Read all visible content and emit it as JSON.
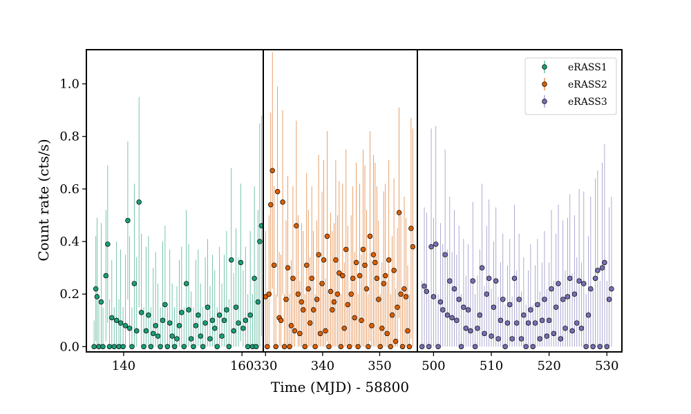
{
  "chart_data": {
    "type": "scatter",
    "subtype": "errorbar",
    "xlabel": "Time (MJD) - 58800",
    "ylabel": "Count rate (cts/s)",
    "ylim": [
      -0.02,
      1.13
    ],
    "yticks": [
      0.0,
      0.2,
      0.4,
      0.6,
      0.8,
      1.0
    ],
    "ytick_labels": [
      "0.0",
      "0.2",
      "0.4",
      "0.6",
      "0.8",
      "1.0"
    ],
    "grid": false,
    "legend_position": "top-right",
    "panels": [
      {
        "series": "eRASS1",
        "xlim": [
          133.7,
          163.6
        ],
        "xticks": [
          140,
          160
        ],
        "xtick_labels": [
          "140",
          "160"
        ]
      },
      {
        "series": "eRASS2",
        "xlim": [
          329.6,
          356.6
        ],
        "xticks": [
          330,
          340,
          350
        ],
        "xtick_labels": [
          "330",
          "340",
          "350"
        ]
      },
      {
        "series": "eRASS3",
        "xlim": [
          497.2,
          532.6
        ],
        "xticks": [
          500,
          510,
          520,
          530
        ],
        "xtick_labels": [
          "500",
          "510",
          "520",
          "530"
        ]
      }
    ],
    "series": [
      {
        "name": "eRASS1",
        "color": "#1b9e77",
        "x": [
          135.0,
          135.3,
          135.5,
          135.8,
          136.2,
          136.5,
          137.0,
          137.3,
          137.6,
          138.0,
          138.4,
          138.8,
          139.2,
          139.5,
          139.9,
          140.3,
          140.7,
          141.0,
          141.4,
          141.8,
          142.2,
          142.6,
          143.0,
          143.4,
          143.8,
          144.2,
          144.6,
          145.0,
          145.4,
          145.8,
          146.2,
          146.6,
          147.0,
          147.4,
          147.8,
          148.2,
          148.6,
          149.0,
          149.4,
          149.8,
          150.2,
          150.6,
          151.0,
          151.4,
          151.8,
          152.2,
          152.6,
          153.0,
          153.4,
          153.8,
          154.2,
          154.6,
          155.0,
          155.4,
          155.8,
          156.2,
          156.6,
          157.0,
          157.4,
          157.8,
          158.2,
          158.6,
          159.0,
          159.4,
          159.8,
          160.2,
          160.6,
          161.0,
          161.4,
          161.8,
          162.1,
          162.4,
          162.7,
          163.0,
          163.3
        ],
        "y": [
          0.0,
          0.22,
          0.19,
          0.0,
          0.17,
          0.0,
          0.27,
          0.39,
          0.0,
          0.11,
          0.0,
          0.1,
          0.0,
          0.09,
          0.0,
          0.08,
          0.48,
          0.07,
          0.0,
          0.24,
          0.06,
          0.55,
          0.13,
          0.0,
          0.06,
          0.12,
          0.0,
          0.05,
          0.08,
          0.04,
          0.0,
          0.1,
          0.16,
          0.0,
          0.09,
          0.04,
          0.0,
          0.03,
          0.08,
          0.13,
          0.0,
          0.24,
          0.14,
          0.03,
          0.0,
          0.08,
          0.12,
          0.04,
          0.0,
          0.09,
          0.15,
          0.03,
          0.1,
          0.07,
          0.0,
          0.12,
          0.04,
          0.1,
          0.14,
          0.0,
          0.33,
          0.06,
          0.15,
          0.09,
          0.32,
          0.07,
          0.1,
          0.0,
          0.12,
          0.0,
          0.26,
          0.0,
          0.17,
          0.4,
          0.46
        ],
        "yerr": [
          0.1,
          0.2,
          0.3,
          0.18,
          0.3,
          0.15,
          0.25,
          0.3,
          0.18,
          0.22,
          0.15,
          0.3,
          0.18,
          0.28,
          0.15,
          0.27,
          0.3,
          0.35,
          0.15,
          0.38,
          0.28,
          0.4,
          0.3,
          0.15,
          0.32,
          0.3,
          0.15,
          0.25,
          0.28,
          0.2,
          0.15,
          0.3,
          0.3,
          0.15,
          0.28,
          0.2,
          0.15,
          0.2,
          0.25,
          0.25,
          0.15,
          0.28,
          0.25,
          0.18,
          0.15,
          0.25,
          0.25,
          0.2,
          0.15,
          0.25,
          0.26,
          0.2,
          0.25,
          0.22,
          0.15,
          0.26,
          0.2,
          0.25,
          0.3,
          0.18,
          0.35,
          0.22,
          0.3,
          0.25,
          0.3,
          0.22,
          0.28,
          0.2,
          0.32,
          0.2,
          0.35,
          0.25,
          0.35,
          0.45,
          0.42
        ]
      },
      {
        "name": "eRASS2",
        "color": "#d95f02",
        "x": [
          330.0,
          330.3,
          330.6,
          330.9,
          331.2,
          331.5,
          331.8,
          332.1,
          332.4,
          332.7,
          333.0,
          333.3,
          333.6,
          333.9,
          334.2,
          334.5,
          334.8,
          335.1,
          335.4,
          335.7,
          336.0,
          336.3,
          336.6,
          336.9,
          337.2,
          337.5,
          337.8,
          338.1,
          338.4,
          338.7,
          339.0,
          339.3,
          339.6,
          339.9,
          340.2,
          340.5,
          340.8,
          341.1,
          341.4,
          341.7,
          342.0,
          342.3,
          342.6,
          342.9,
          343.2,
          343.5,
          343.8,
          344.1,
          344.4,
          344.7,
          345.0,
          345.3,
          345.6,
          345.9,
          346.2,
          346.5,
          346.8,
          347.1,
          347.4,
          347.7,
          348.0,
          348.3,
          348.6,
          348.9,
          349.2,
          349.5,
          349.8,
          350.1,
          350.4,
          350.7,
          351.0,
          351.3,
          351.6,
          351.9,
          352.2,
          352.5,
          352.8,
          353.1,
          353.4,
          353.7,
          354.0,
          354.3,
          354.6,
          354.9,
          355.2,
          355.5,
          355.8
        ],
        "y": [
          0.19,
          0.0,
          0.2,
          0.54,
          0.67,
          0.31,
          0.0,
          0.59,
          0.11,
          0.1,
          0.55,
          0.0,
          0.18,
          0.3,
          0.0,
          0.08,
          0.26,
          0.06,
          0.46,
          0.2,
          0.05,
          0.17,
          0.14,
          0.0,
          0.31,
          0.22,
          0.09,
          0.26,
          0.14,
          0.0,
          0.18,
          0.35,
          0.05,
          0.24,
          0.33,
          0.06,
          0.42,
          0.0,
          0.21,
          0.14,
          0.17,
          0.33,
          0.2,
          0.28,
          0.0,
          0.27,
          0.07,
          0.37,
          0.16,
          0.0,
          0.2,
          0.26,
          0.11,
          0.32,
          0.0,
          0.27,
          0.1,
          0.37,
          0.31,
          0.22,
          0.0,
          0.42,
          0.08,
          0.35,
          0.32,
          0.26,
          0.18,
          0.0,
          0.07,
          0.24,
          0.27,
          0.05,
          0.33,
          0.0,
          0.12,
          0.29,
          0.02,
          0.15,
          0.51,
          0.2,
          0.0,
          0.22,
          0.19,
          0.06,
          0.0,
          0.45,
          0.38
        ],
        "yerr": [
          0.25,
          0.2,
          0.3,
          0.35,
          0.45,
          0.3,
          0.2,
          0.4,
          0.25,
          0.25,
          0.35,
          0.2,
          0.3,
          0.35,
          0.2,
          0.25,
          0.35,
          0.2,
          0.4,
          0.3,
          0.2,
          0.3,
          0.3,
          0.2,
          0.35,
          0.3,
          0.25,
          0.35,
          0.3,
          0.2,
          0.3,
          0.38,
          0.2,
          0.35,
          0.38,
          0.2,
          0.4,
          0.2,
          0.3,
          0.3,
          0.3,
          0.38,
          0.3,
          0.35,
          0.2,
          0.35,
          0.25,
          0.38,
          0.3,
          0.2,
          0.3,
          0.35,
          0.25,
          0.38,
          0.2,
          0.35,
          0.25,
          0.38,
          0.38,
          0.3,
          0.2,
          0.4,
          0.25,
          0.38,
          0.38,
          0.35,
          0.3,
          0.2,
          0.25,
          0.35,
          0.35,
          0.2,
          0.38,
          0.2,
          0.3,
          0.35,
          0.2,
          0.3,
          0.4,
          0.3,
          0.2,
          0.35,
          0.3,
          0.25,
          0.2,
          0.42,
          0.45
        ]
      },
      {
        "name": "eRASS3",
        "color": "#7570b3",
        "x": [
          498.0,
          498.4,
          498.8,
          499.2,
          499.6,
          500.0,
          500.4,
          500.8,
          501.2,
          501.6,
          502.0,
          502.4,
          502.8,
          503.2,
          503.6,
          504.0,
          504.4,
          504.8,
          505.2,
          505.6,
          506.0,
          506.4,
          506.8,
          507.2,
          507.6,
          508.0,
          508.4,
          508.8,
          509.2,
          509.6,
          510.0,
          510.4,
          510.8,
          511.2,
          511.6,
          512.0,
          512.4,
          512.8,
          513.2,
          513.6,
          514.0,
          514.4,
          514.8,
          515.2,
          515.6,
          516.0,
          516.4,
          516.8,
          517.2,
          517.6,
          518.0,
          518.4,
          518.8,
          519.2,
          519.6,
          520.0,
          520.4,
          520.8,
          521.2,
          521.6,
          522.0,
          522.4,
          522.8,
          523.2,
          523.6,
          524.0,
          524.4,
          524.8,
          525.2,
          525.6,
          526.0,
          526.4,
          526.8,
          527.2,
          527.6,
          528.0,
          528.4,
          528.8,
          529.2,
          529.6,
          530.0,
          530.4,
          530.8
        ],
        "y": [
          0.0,
          0.23,
          0.21,
          0.0,
          0.38,
          0.19,
          0.39,
          0.0,
          0.17,
          0.14,
          0.35,
          0.12,
          0.25,
          0.11,
          0.22,
          0.1,
          0.18,
          0.0,
          0.15,
          0.07,
          0.14,
          0.06,
          0.25,
          0.0,
          0.07,
          0.12,
          0.3,
          0.05,
          0.2,
          0.26,
          0.04,
          0.15,
          0.25,
          0.03,
          0.1,
          0.18,
          0.0,
          0.09,
          0.16,
          0.03,
          0.26,
          0.09,
          0.18,
          0.03,
          0.12,
          0.0,
          0.09,
          0.14,
          0.0,
          0.09,
          0.16,
          0.03,
          0.1,
          0.18,
          0.04,
          0.1,
          0.22,
          0.05,
          0.15,
          0.24,
          0.03,
          0.18,
          0.07,
          0.19,
          0.26,
          0.06,
          0.2,
          0.09,
          0.25,
          0.07,
          0.24,
          0.0,
          0.12,
          0.22,
          0.0,
          0.26,
          0.29,
          0.0,
          0.3,
          0.32,
          0.0,
          0.18,
          0.22
        ],
        "yerr": [
          0.25,
          0.3,
          0.3,
          0.2,
          0.45,
          0.3,
          0.45,
          0.2,
          0.3,
          0.25,
          0.4,
          0.25,
          0.32,
          0.25,
          0.3,
          0.25,
          0.28,
          0.2,
          0.26,
          0.2,
          0.25,
          0.2,
          0.3,
          0.2,
          0.2,
          0.25,
          0.32,
          0.18,
          0.26,
          0.3,
          0.18,
          0.25,
          0.28,
          0.16,
          0.22,
          0.25,
          0.16,
          0.22,
          0.25,
          0.16,
          0.28,
          0.2,
          0.25,
          0.18,
          0.22,
          0.16,
          0.2,
          0.25,
          0.16,
          0.22,
          0.25,
          0.18,
          0.22,
          0.26,
          0.18,
          0.22,
          0.3,
          0.2,
          0.28,
          0.3,
          0.2,
          0.3,
          0.22,
          0.3,
          0.32,
          0.22,
          0.3,
          0.25,
          0.35,
          0.25,
          0.35,
          0.2,
          0.3,
          0.35,
          0.22,
          0.38,
          0.38,
          0.25,
          0.4,
          0.45,
          0.25,
          0.35,
          0.35
        ]
      }
    ]
  }
}
